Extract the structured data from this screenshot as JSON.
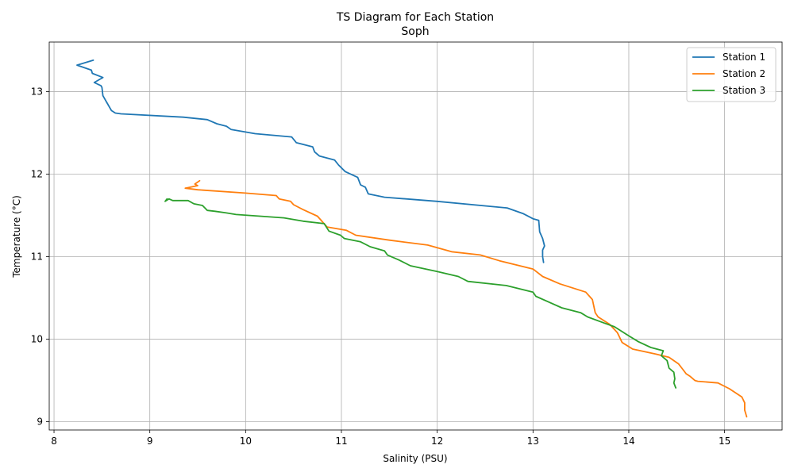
{
  "chart_data": {
    "type": "line",
    "title": "TS Diagram for Each Station",
    "subtitle": "Soph",
    "xlabel": "Salinity (PSU)",
    "ylabel": "Temperature (°C)",
    "xlim": [
      7.95,
      15.6
    ],
    "ylim": [
      8.9,
      13.6
    ],
    "xticks": [
      8,
      9,
      10,
      11,
      12,
      13,
      14,
      15
    ],
    "yticks": [
      9,
      10,
      11,
      12,
      13
    ],
    "grid": true,
    "legend_position": "top-right",
    "series": [
      {
        "name": "Station 1",
        "color": "#1f77b4",
        "x": [
          8.41,
          8.24,
          8.39,
          8.4,
          8.51,
          8.42,
          8.49,
          8.5,
          8.51,
          8.55,
          8.6,
          8.64,
          8.7,
          9.35,
          9.6,
          9.7,
          9.8,
          9.85,
          10.1,
          10.48,
          10.53,
          10.7,
          10.72,
          10.77,
          10.93,
          10.97,
          11.04,
          11.17,
          11.2,
          11.25,
          11.28,
          11.45,
          12.0,
          12.73,
          12.9,
          13.0,
          13.06,
          13.07,
          13.1,
          13.12,
          13.1,
          13.1,
          13.11
        ],
        "y": [
          13.38,
          13.32,
          13.26,
          13.22,
          13.17,
          13.11,
          13.07,
          13.05,
          12.95,
          12.87,
          12.77,
          12.74,
          12.73,
          12.69,
          12.66,
          12.61,
          12.58,
          12.54,
          12.49,
          12.45,
          12.38,
          12.33,
          12.27,
          12.22,
          12.17,
          12.11,
          12.03,
          11.96,
          11.87,
          11.84,
          11.76,
          11.72,
          11.67,
          11.59,
          11.52,
          11.46,
          11.44,
          11.3,
          11.22,
          11.13,
          11.08,
          11.0,
          10.93
        ]
      },
      {
        "name": "Station 2",
        "color": "#ff7f0e",
        "x": [
          9.52,
          9.47,
          9.5,
          9.37,
          9.5,
          10.0,
          10.32,
          10.35,
          10.47,
          10.5,
          10.6,
          10.75,
          10.85,
          11.05,
          11.15,
          11.5,
          11.9,
          12.15,
          12.45,
          12.65,
          13.0,
          13.1,
          13.28,
          13.55,
          13.62,
          13.65,
          13.68,
          13.8,
          13.88,
          13.93,
          14.04,
          14.28,
          14.42,
          14.52,
          14.56,
          14.6,
          14.64,
          14.69,
          14.72,
          14.93,
          15.05,
          15.18,
          15.21,
          15.21,
          15.23
        ],
        "y": [
          11.92,
          11.88,
          11.86,
          11.83,
          11.81,
          11.77,
          11.74,
          11.7,
          11.67,
          11.63,
          11.57,
          11.49,
          11.36,
          11.32,
          11.26,
          11.2,
          11.14,
          11.06,
          11.02,
          10.95,
          10.85,
          10.76,
          10.67,
          10.57,
          10.48,
          10.32,
          10.27,
          10.18,
          10.08,
          9.96,
          9.88,
          9.82,
          9.78,
          9.7,
          9.64,
          9.58,
          9.55,
          9.5,
          9.49,
          9.47,
          9.4,
          9.3,
          9.23,
          9.14,
          9.06
        ]
      },
      {
        "name": "Station 3",
        "color": "#2ca02c",
        "x": [
          9.18,
          9.16,
          9.2,
          9.24,
          9.4,
          9.46,
          9.55,
          9.6,
          9.68,
          9.8,
          9.9,
          10.4,
          10.6,
          10.82,
          10.87,
          10.99,
          11.03,
          11.2,
          11.3,
          11.45,
          11.48,
          11.6,
          11.72,
          12.0,
          12.22,
          12.32,
          12.72,
          13.0,
          13.03,
          13.3,
          13.5,
          13.57,
          13.85,
          14.0,
          14.1,
          14.23,
          14.36,
          14.34,
          14.4,
          14.42,
          14.47,
          14.48,
          14.47,
          14.49
        ],
        "y": [
          11.7,
          11.67,
          11.7,
          11.68,
          11.68,
          11.64,
          11.62,
          11.56,
          11.55,
          11.53,
          11.51,
          11.47,
          11.43,
          11.4,
          11.31,
          11.26,
          11.22,
          11.18,
          11.12,
          11.07,
          11.02,
          10.96,
          10.89,
          10.82,
          10.76,
          10.7,
          10.65,
          10.57,
          10.52,
          10.38,
          10.32,
          10.27,
          10.15,
          10.04,
          9.97,
          9.9,
          9.86,
          9.8,
          9.74,
          9.65,
          9.6,
          9.52,
          9.47,
          9.41
        ]
      }
    ]
  }
}
